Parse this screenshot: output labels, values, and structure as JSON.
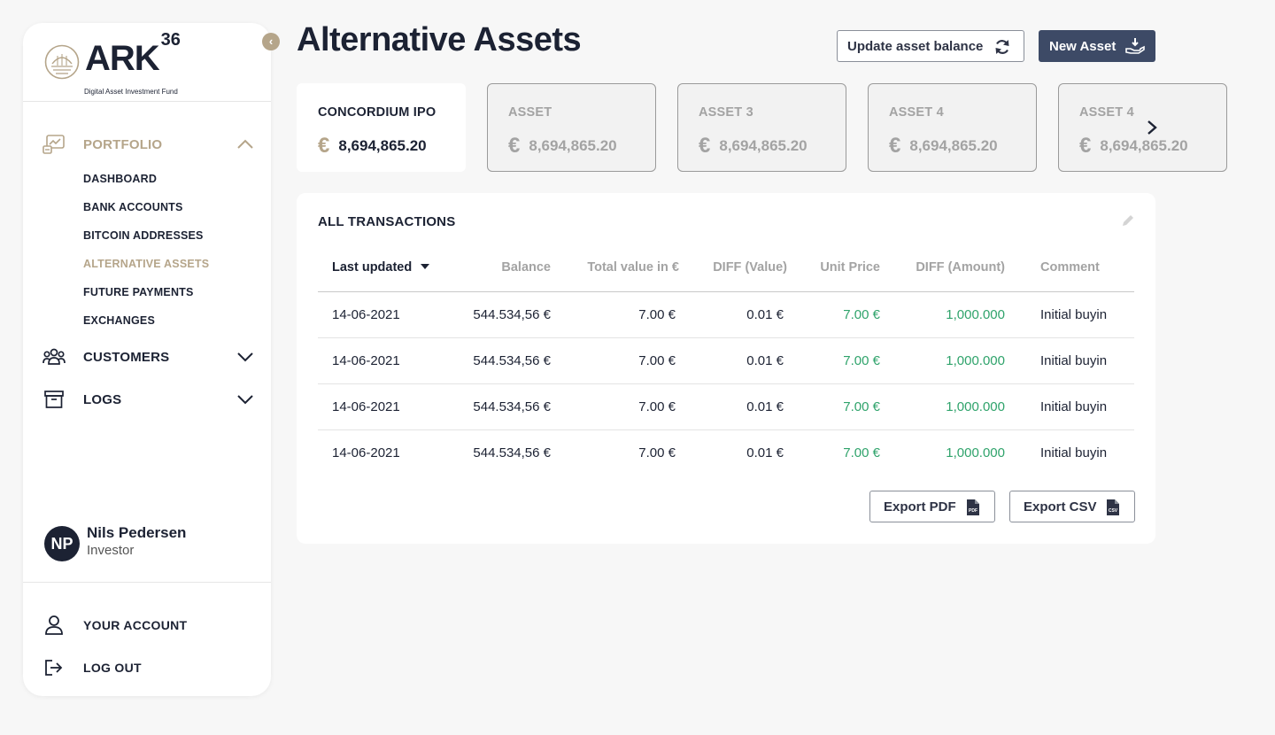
{
  "logo": {
    "brand": "ARK",
    "superscript": "36",
    "tagline": "Digital Asset Investment Fund"
  },
  "sidebar": {
    "collapse_icon": "chevron-left-icon",
    "groups": [
      {
        "label": "PORTFOLIO",
        "icon": "portfolio-chart-icon",
        "expanded": true
      },
      {
        "label": "CUSTOMERS",
        "icon": "users-icon",
        "expanded": false
      },
      {
        "label": "LOGS",
        "icon": "archive-box-icon",
        "expanded": false
      }
    ],
    "portfolio_items": [
      {
        "label": "DASHBOARD",
        "active": false
      },
      {
        "label": "BANK ACCOUNTS",
        "active": false
      },
      {
        "label": "BITCOIN ADDRESSES",
        "active": false
      },
      {
        "label": "ALTERNATIVE ASSETS",
        "active": true
      },
      {
        "label": "FUTURE PAYMENTS",
        "active": false
      },
      {
        "label": "EXCHANGES",
        "active": false
      }
    ],
    "user": {
      "initials": "NP",
      "name": "Nils Pedersen",
      "role": "Investor"
    },
    "account_items": [
      {
        "label": "YOUR ACCOUNT",
        "icon": "user-icon"
      },
      {
        "label": "LOG OUT",
        "icon": "logout-icon"
      }
    ],
    "accent_color": "#b5a58a"
  },
  "header": {
    "title": "Alternative Assets",
    "update_button": "Update asset balance",
    "new_button": "New Asset"
  },
  "cards": [
    {
      "name": "CONCORDIUM IPO",
      "currency": "€",
      "value": "8,694,865.20",
      "active": true
    },
    {
      "name": "ASSET",
      "currency": "€",
      "value": "8,694,865.20",
      "active": false
    },
    {
      "name": "ASSET 3",
      "currency": "€",
      "value": "8,694,865.20",
      "active": false
    },
    {
      "name": "ASSET 4",
      "currency": "€",
      "value": "8,694,865.20",
      "active": false
    },
    {
      "name": "ASSET 4",
      "currency": "€",
      "value": "8,694,865.20",
      "active": false
    }
  ],
  "transactions": {
    "title": "ALL TRANSACTIONS",
    "columns": [
      "Last updated",
      "Balance",
      "Total value in €",
      "DIFF (Value)",
      "Unit Price",
      "DIFF (Amount)",
      "Comment"
    ],
    "rows": [
      [
        "14-06-2021",
        "544.534,56 €",
        "7.00 €",
        "0.01 €",
        "7.00 €",
        "1,000.000",
        "Initial buyin"
      ],
      [
        "14-06-2021",
        "544.534,56 €",
        "7.00 €",
        "0.01 €",
        "7.00 €",
        "1,000.000",
        "Initial buyin"
      ],
      [
        "14-06-2021",
        "544.534,56 €",
        "7.00 €",
        "0.01 €",
        "7.00 €",
        "1,000.000",
        "Initial buyin"
      ],
      [
        "14-06-2021",
        "544.534,56 €",
        "7.00 €",
        "0.01 €",
        "7.00 €",
        "1,000.000",
        "Initial buyin"
      ]
    ],
    "export_pdf": "Export PDF",
    "export_csv": "Export CSV",
    "positive_color": "#2fa36b"
  }
}
